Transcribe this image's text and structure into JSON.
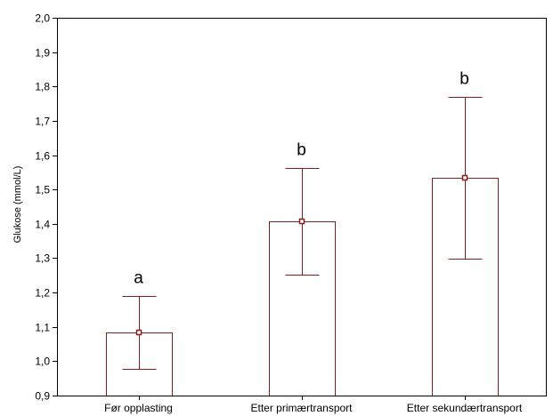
{
  "chart_data": {
    "type": "bar",
    "title": "",
    "xlabel": "",
    "ylabel": "Glukose (mmol/L)",
    "ylim": [
      0.9,
      2.0
    ],
    "yticks": [
      "0,9",
      "1,0",
      "1,1",
      "1,2",
      "1,3",
      "1,4",
      "1,5",
      "1,6",
      "1,7",
      "1,8",
      "1,9",
      "2,0"
    ],
    "categories": [
      "Før opplasting",
      "Etter primærtransport",
      "Etter sekundærtransport"
    ],
    "values": [
      1.083,
      1.407,
      1.535
    ],
    "error_low": [
      0.978,
      1.252,
      1.298
    ],
    "error_high": [
      1.189,
      1.563,
      1.769
    ],
    "group_letters": [
      "a",
      "b",
      "b"
    ],
    "grid": false,
    "colors": {
      "bar_outline": "#7f1f1f",
      "bar_fill": "#ffffff",
      "axis": "#000000"
    }
  }
}
